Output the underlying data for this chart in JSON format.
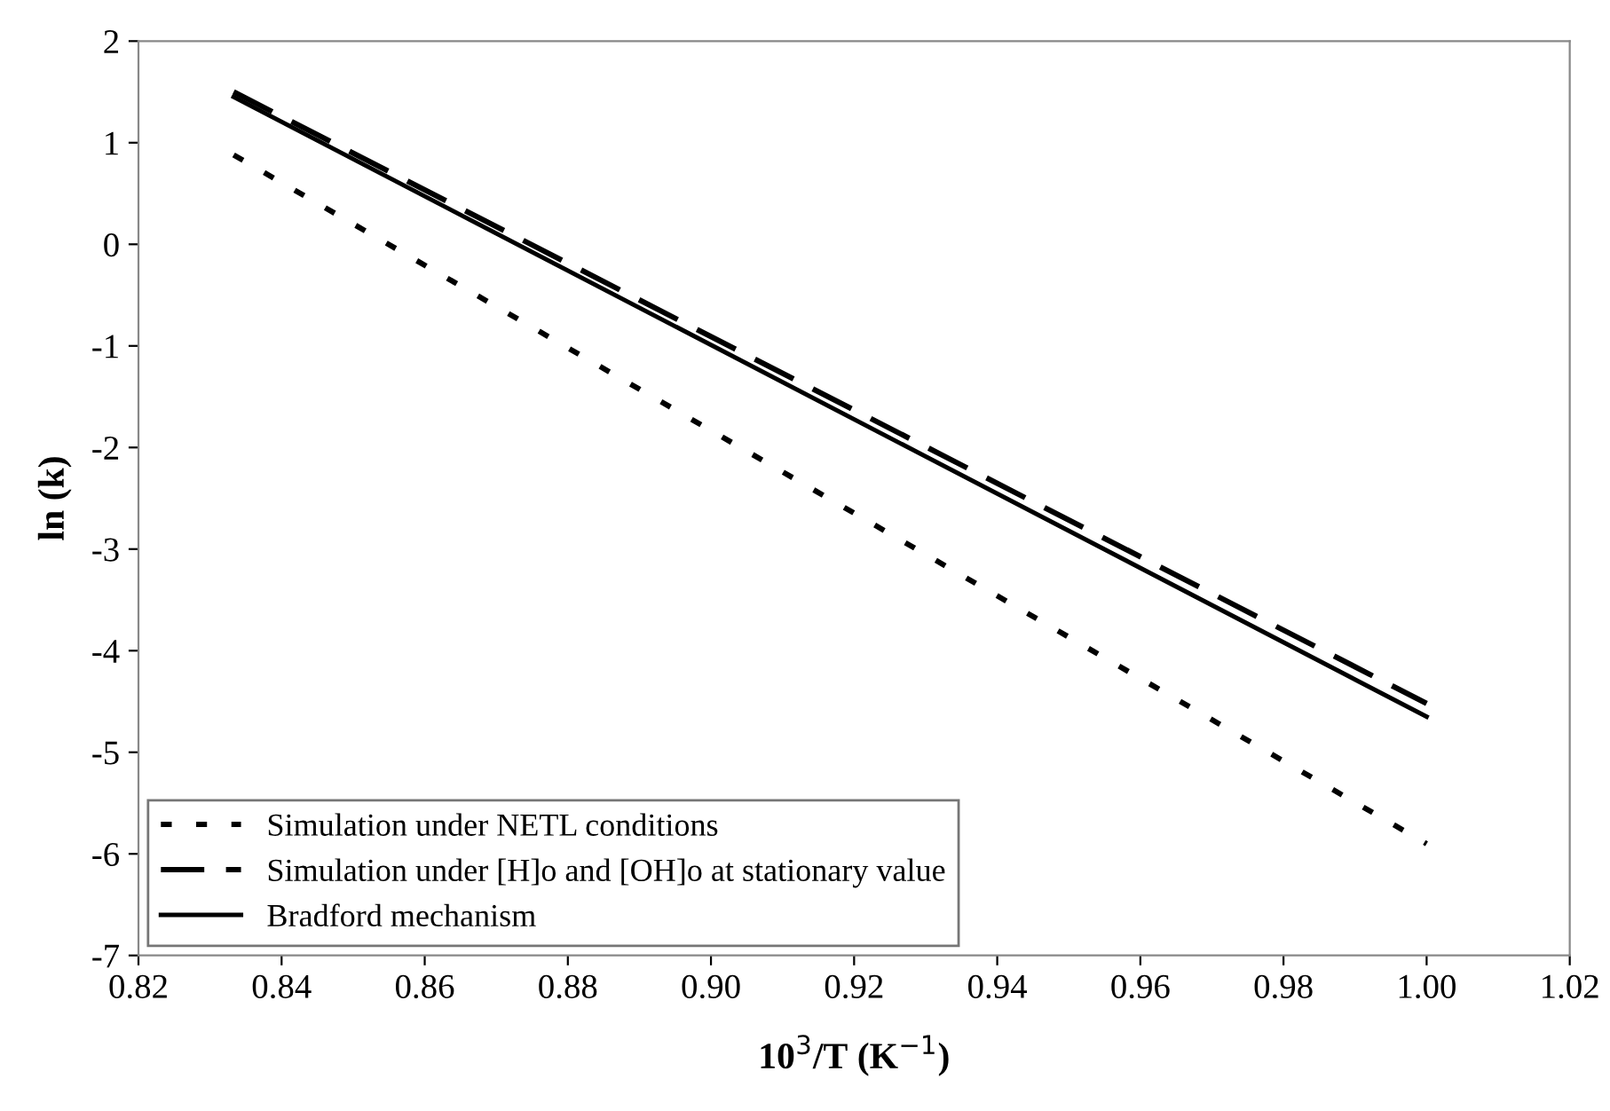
{
  "chart_data": {
    "type": "line",
    "xlabel": "10$^{3}$/T (K$^{−1}$)",
    "ylabel": "ln (k)",
    "x": [
      0.8333,
      1.0
    ],
    "series": [
      {
        "name": "Simulation under NETL conditions",
        "color": "#000000",
        "line_style": "dotted",
        "values": [
          0.88,
          -5.9
        ]
      },
      {
        "name": "Simulation under [H]o and [OH]o at stationary value",
        "color": "#000000",
        "line_style": "dashed",
        "values": [
          1.5,
          -4.52
        ]
      },
      {
        "name": "Bradford mechanism",
        "color": "#000000",
        "line_style": "solid",
        "values": [
          1.45,
          -4.65
        ]
      }
    ],
    "xlim": [
      0.82,
      1.02
    ],
    "xticks": [
      {
        "value": 0.82,
        "label": "0.82"
      },
      {
        "value": 0.84,
        "label": "0.84"
      },
      {
        "value": 0.86,
        "label": "0.86"
      },
      {
        "value": 0.88,
        "label": "0.88"
      },
      {
        "value": 0.9,
        "label": "0.90"
      },
      {
        "value": 0.92,
        "label": "0.92"
      },
      {
        "value": 0.94,
        "label": "0.94"
      },
      {
        "value": 0.96,
        "label": "0.96"
      },
      {
        "value": 0.98,
        "label": "0.98"
      },
      {
        "value": 1.0,
        "label": "1.00"
      },
      {
        "value": 1.02,
        "label": "1.02"
      }
    ],
    "ylim": [
      -7,
      2
    ],
    "yticks": [
      -7,
      -6,
      -5,
      -4,
      -3,
      -2,
      -1,
      0,
      1,
      2
    ],
    "grid": false,
    "legend": "bottom left",
    "marker": "none"
  }
}
